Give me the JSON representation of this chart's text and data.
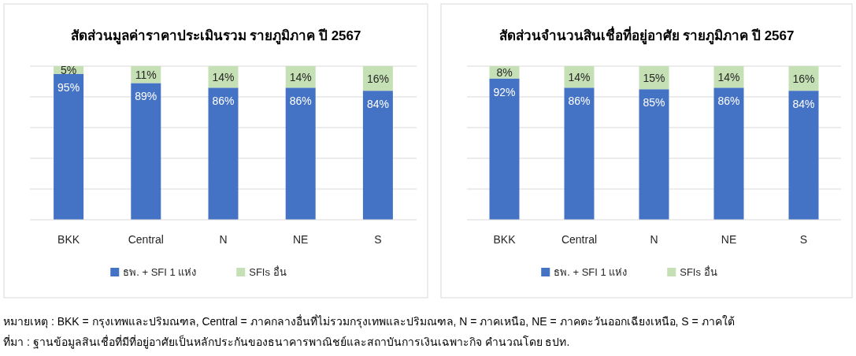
{
  "chart_data": [
    {
      "type": "bar",
      "stacked": true,
      "title": "สัดส่วนมูลค่าราคาประเมินรวม รายภูมิภาค ปี 2567",
      "categories": [
        "BKK",
        "Central",
        "N",
        "NE",
        "S"
      ],
      "series": [
        {
          "name": "ธพ. + SFI 1 แห่ง",
          "color": "#4472c4",
          "values": [
            95,
            89,
            86,
            86,
            84
          ],
          "value_labels": [
            "95%",
            "89%",
            "86%",
            "86%",
            "84%"
          ]
        },
        {
          "name": "SFIs อื่น",
          "color": "#c5e0b4",
          "values": [
            5,
            11,
            14,
            14,
            16
          ],
          "value_labels": [
            "5%",
            "11%",
            "14%",
            "14%",
            "16%"
          ]
        }
      ],
      "grid": "y",
      "legend": "bottom",
      "tick_labels": "x",
      "annotations": [
        "หมายเหตุ : BKK = กรุงเทพและปริมณฑล, Central = ภาคกลางอื่นที่ไม่รวมกรุงเทพและปริมณฑล, N = ภาคเหนือ, NE = ภาคตะวันออกเฉียงเหนือ, S = ภาคใต้",
        "ที่มา : ฐานข้อมูลสินเชื่อที่มีที่อยู่อาศัยเป็นหลักประกันของธนาคารพาณิชย์และสถาบันการเงินเฉพาะกิจ คำนวณโดย ธปท."
      ]
    },
    {
      "type": "bar",
      "stacked": true,
      "title": "สัดส่วนจำนวนสินเชื่อที่อยู่อาศัย รายภูมิภาค ปี 2567",
      "categories": [
        "BKK",
        "Central",
        "N",
        "NE",
        "S"
      ],
      "series": [
        {
          "name": "ธพ. + SFI 1 แห่ง",
          "color": "#4472c4",
          "values": [
            92,
            86,
            85,
            86,
            84
          ],
          "value_labels": [
            "92%",
            "86%",
            "85%",
            "86%",
            "84%"
          ]
        },
        {
          "name": "SFIs อื่น",
          "color": "#c5e0b4",
          "values": [
            8,
            14,
            15,
            14,
            16
          ],
          "value_labels": [
            "8%",
            "14%",
            "15%",
            "14%",
            "16%"
          ]
        }
      ],
      "grid": "y",
      "legend": "bottom",
      "tick_labels": "x"
    }
  ]
}
